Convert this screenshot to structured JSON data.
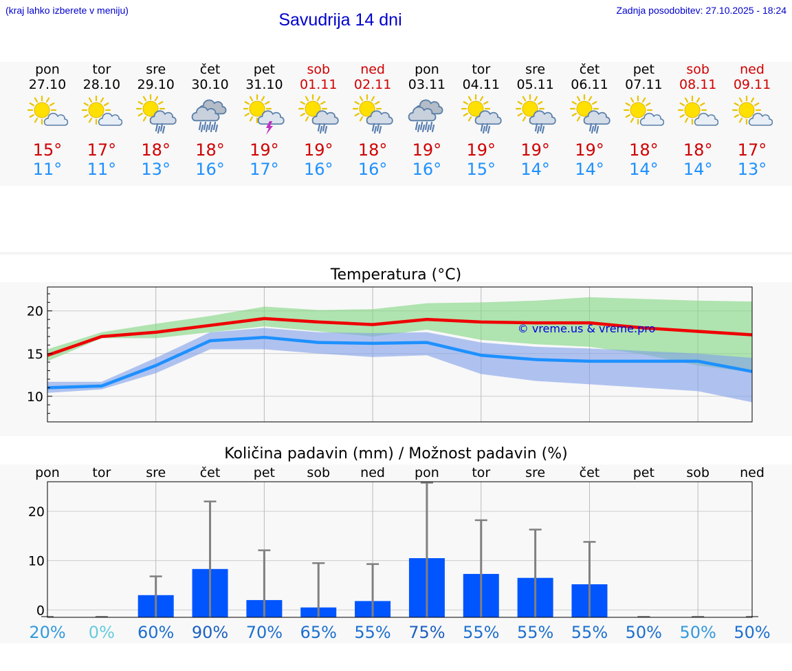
{
  "header": {
    "hint": "(kraj lahko izberete v meniju)",
    "title": "Savudrija 14 dni",
    "updated": "Zadnja posodobitev: 27.10.2025 - 18:24"
  },
  "days": [
    {
      "name": "pon",
      "date": "27.10",
      "weekend": false,
      "icon": "sun-cloud-icon",
      "tmax": "15°",
      "tmin": "11°"
    },
    {
      "name": "tor",
      "date": "28.10",
      "weekend": false,
      "icon": "sun-cloud-icon",
      "tmax": "17°",
      "tmin": "11°"
    },
    {
      "name": "sre",
      "date": "29.10",
      "weekend": false,
      "icon": "sun-cloud-rain-icon",
      "tmax": "18°",
      "tmin": "13°"
    },
    {
      "name": "čet",
      "date": "30.10",
      "weekend": false,
      "icon": "cloud-heavy-rain-icon",
      "tmax": "18°",
      "tmin": "16°"
    },
    {
      "name": "pet",
      "date": "31.10",
      "weekend": false,
      "icon": "sun-cloud-thunder-icon",
      "tmax": "19°",
      "tmin": "17°"
    },
    {
      "name": "sob",
      "date": "01.11",
      "weekend": true,
      "icon": "sun-cloud-rain-icon",
      "tmax": "19°",
      "tmin": "16°"
    },
    {
      "name": "ned",
      "date": "02.11",
      "weekend": true,
      "icon": "sun-cloud-rain-icon",
      "tmax": "18°",
      "tmin": "16°"
    },
    {
      "name": "pon",
      "date": "03.11",
      "weekend": false,
      "icon": "cloud-heavy-rain-icon",
      "tmax": "19°",
      "tmin": "16°"
    },
    {
      "name": "tor",
      "date": "04.11",
      "weekend": false,
      "icon": "sun-cloud-rain-icon",
      "tmax": "19°",
      "tmin": "15°"
    },
    {
      "name": "sre",
      "date": "05.11",
      "weekend": false,
      "icon": "sun-cloud-rain-icon",
      "tmax": "19°",
      "tmin": "14°"
    },
    {
      "name": "čet",
      "date": "06.11",
      "weekend": false,
      "icon": "sun-cloud-rain-icon",
      "tmax": "19°",
      "tmin": "14°"
    },
    {
      "name": "pet",
      "date": "07.11",
      "weekend": false,
      "icon": "sun-cloud-icon",
      "tmax": "18°",
      "tmin": "14°"
    },
    {
      "name": "sob",
      "date": "08.11",
      "weekend": true,
      "icon": "sun-cloud-icon",
      "tmax": "18°",
      "tmin": "14°"
    },
    {
      "name": "ned",
      "date": "09.11",
      "weekend": true,
      "icon": "sun-cloud-icon",
      "tmax": "17°",
      "tmin": "13°"
    }
  ],
  "chart_data": [
    {
      "type": "line",
      "title": "Temperatura (°C)",
      "x": [
        0,
        1,
        2,
        3,
        4,
        5,
        6,
        7,
        8,
        9,
        10,
        11,
        12,
        13
      ],
      "ylim": [
        7,
        22.8
      ],
      "yticks": [
        10,
        15,
        20
      ],
      "watermark": "© vreme.us & vreme.pro",
      "series": [
        {
          "name": "max",
          "color": "#ee0000",
          "values": [
            14.8,
            17.0,
            17.5,
            18.3,
            19.1,
            18.7,
            18.4,
            19.0,
            18.7,
            18.6,
            18.6,
            18.0,
            17.6,
            17.2
          ]
        },
        {
          "name": "min",
          "color": "#1e90ff",
          "values": [
            11.0,
            11.2,
            13.6,
            16.5,
            16.9,
            16.3,
            16.2,
            16.3,
            14.8,
            14.3,
            14.1,
            14.1,
            14.1,
            12.9
          ]
        }
      ],
      "bands": [
        {
          "name": "max-range",
          "color": "#7fd67f",
          "low": [
            14.1,
            16.8,
            16.8,
            17.5,
            18.2,
            17.6,
            17.0,
            17.8,
            16.6,
            16.1,
            15.8,
            14.9,
            13.6,
            12.8
          ],
          "high": [
            15.5,
            17.5,
            18.5,
            19.4,
            20.5,
            20.1,
            20.2,
            20.9,
            21.0,
            21.2,
            21.6,
            21.4,
            21.2,
            21.1
          ]
        },
        {
          "name": "min-range",
          "color": "#7f9fea",
          "low": [
            10.4,
            10.8,
            12.7,
            15.5,
            15.5,
            15.0,
            14.6,
            14.8,
            12.6,
            11.8,
            11.4,
            11.0,
            10.6,
            9.3
          ],
          "high": [
            11.7,
            11.7,
            14.5,
            17.5,
            18.0,
            17.5,
            17.4,
            17.5,
            16.3,
            15.8,
            15.6,
            15.3,
            15.0,
            14.5
          ]
        }
      ]
    },
    {
      "type": "bar",
      "title": "Količina padavin (mm) / Možnost padavin (%)",
      "categories": [
        "pon",
        "tor",
        "sre",
        "čet",
        "pet",
        "sob",
        "ned",
        "pon",
        "tor",
        "sre",
        "čet",
        "pet",
        "sob",
        "ned"
      ],
      "ylim": [
        -1.5,
        26
      ],
      "yticks": [
        0,
        10,
        20
      ],
      "series": [
        {
          "name": "amount_mm",
          "color": "#0055ff",
          "values": [
            0,
            0,
            3.0,
            8.3,
            2.0,
            0.5,
            1.8,
            10.5,
            7.3,
            6.5,
            5.2,
            0,
            0,
            0
          ]
        },
        {
          "name": "max_mm",
          "color": "#808080",
          "values": [
            0,
            0,
            6.8,
            22.0,
            12.1,
            9.5,
            9.3,
            25.8,
            18.2,
            16.3,
            13.8,
            0,
            0,
            0
          ]
        }
      ],
      "probability": [
        "20%",
        "0%",
        "60%",
        "90%",
        "70%",
        "65%",
        "55%",
        "75%",
        "55%",
        "55%",
        "55%",
        "50%",
        "50%",
        "50%"
      ],
      "probability_colors": [
        "#3399dd",
        "#66ccdd",
        "#1c6fcf",
        "#1c5fc0",
        "#1c6fcf",
        "#1c6fcf",
        "#1c6fcf",
        "#1c5fc0",
        "#1c6fcf",
        "#1c6fcf",
        "#1c6fcf",
        "#1c6fcf",
        "#3399dd",
        "#1c6fcf"
      ]
    }
  ]
}
